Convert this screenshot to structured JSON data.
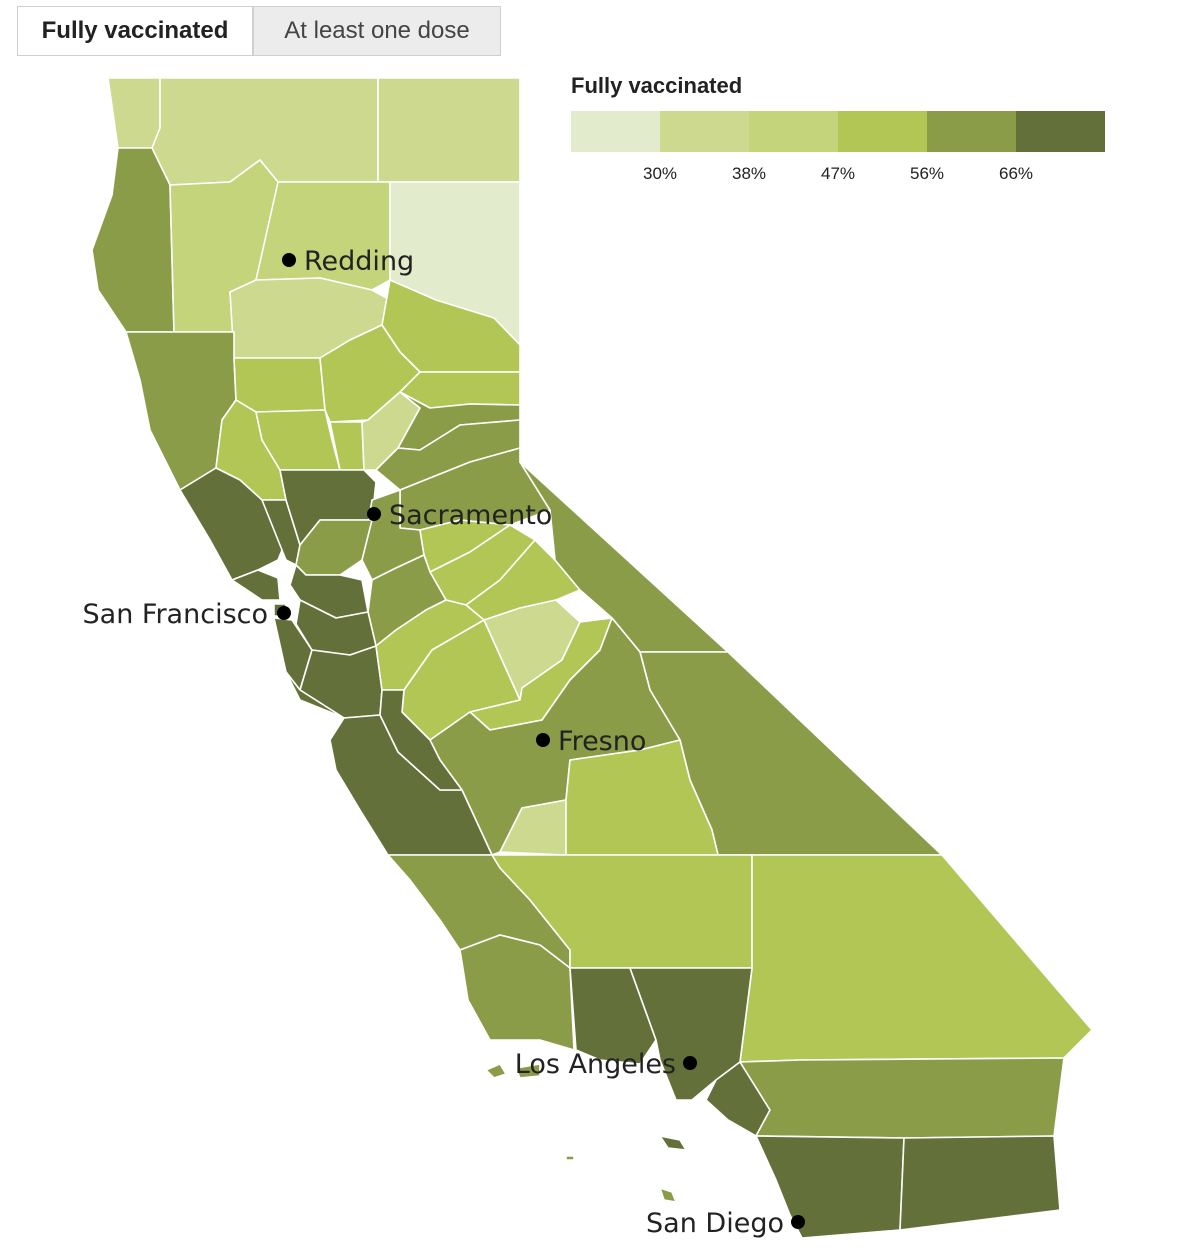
{
  "tabs": [
    {
      "label": "Fully vaccinated",
      "active": true
    },
    {
      "label": "At least one dose",
      "active": false
    }
  ],
  "legend": {
    "title": "Fully vaccinated",
    "colors": [
      "#e2ebcb",
      "#ccd98f",
      "#c3d47b",
      "#b1c654",
      "#8b9c49",
      "#637039"
    ],
    "ticks": [
      "30%",
      "38%",
      "47%",
      "56%",
      "66%"
    ]
  },
  "cities": [
    {
      "name": "Redding"
    },
    {
      "name": "Sacramento"
    },
    {
      "name": "San Francisco"
    },
    {
      "name": "Fresno"
    },
    {
      "name": "Los Angeles"
    },
    {
      "name": "San Diego"
    }
  ]
}
